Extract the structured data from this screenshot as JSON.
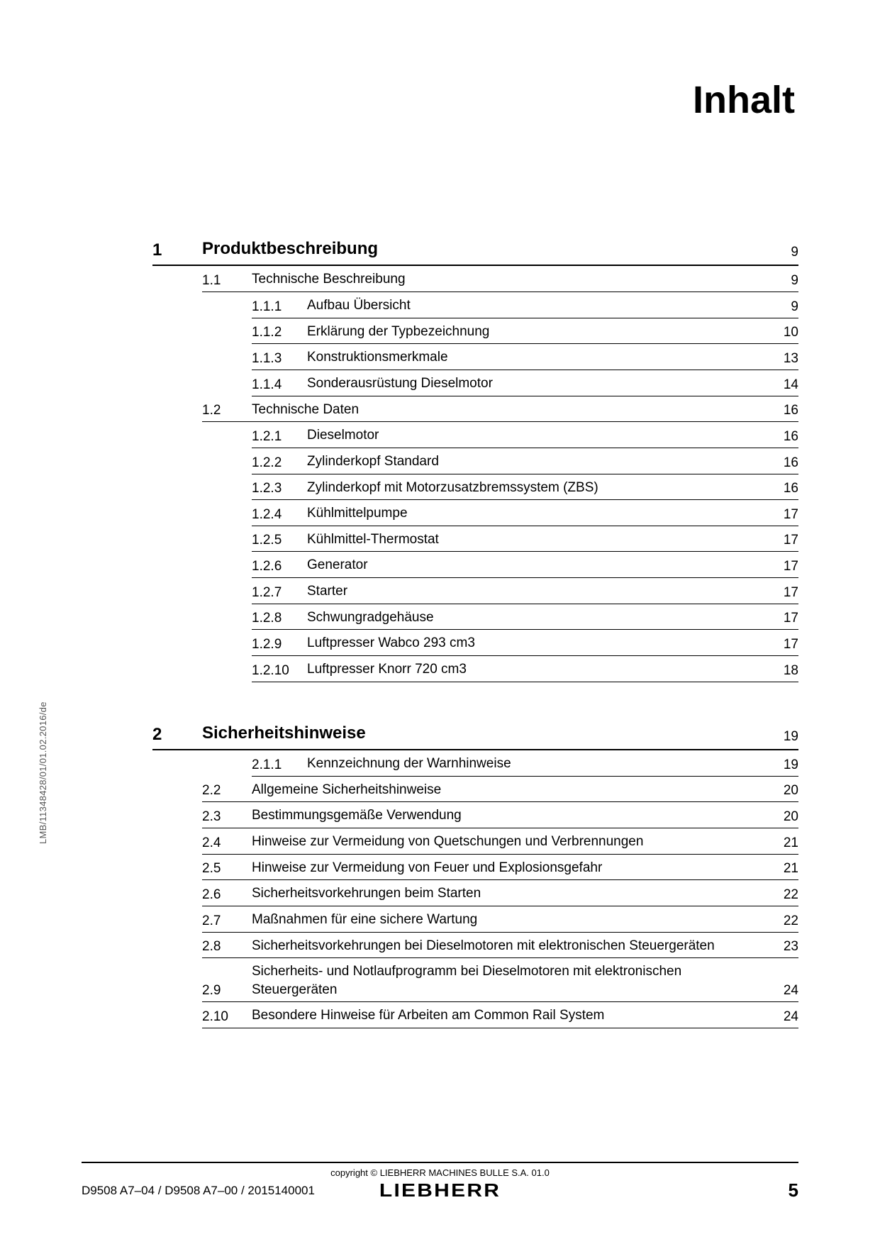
{
  "title": "Inhalt",
  "sideText": "LMB/11348428/01/01.02.2016/de",
  "footer": {
    "copyright": "copyright © LIEBHERR MACHINES BULLE S.A. 01.0",
    "docRef": "D9508 A7–04 / D9508 A7–00 / 2015140001",
    "brand": "LIEBHERR",
    "pageNumber": "5"
  },
  "sections": [
    {
      "num": "1",
      "title": "Produktbeschreibung",
      "page": "9",
      "items": [
        {
          "level": 2,
          "num": "1.1",
          "title": "Technische Beschreibung",
          "page": "9"
        },
        {
          "level": 3,
          "num": "1.1.1",
          "title": "Aufbau Übersicht",
          "page": "9"
        },
        {
          "level": 3,
          "num": "1.1.2",
          "title": "Erklärung der Typbezeichnung",
          "page": "10"
        },
        {
          "level": 3,
          "num": "1.1.3",
          "title": "Konstruktionsmerkmale",
          "page": "13"
        },
        {
          "level": 3,
          "num": "1.1.4",
          "title": "Sonderausrüstung Dieselmotor",
          "page": "14"
        },
        {
          "level": 2,
          "num": "1.2",
          "title": "Technische Daten",
          "page": "16"
        },
        {
          "level": 3,
          "num": "1.2.1",
          "title": "Dieselmotor",
          "page": "16"
        },
        {
          "level": 3,
          "num": "1.2.2",
          "title": "Zylinderkopf Standard",
          "page": "16"
        },
        {
          "level": 3,
          "num": "1.2.3",
          "title": "Zylinderkopf mit Motorzusatzbremssystem (ZBS)",
          "page": "16"
        },
        {
          "level": 3,
          "num": "1.2.4",
          "title": "Kühlmittelpumpe",
          "page": "17"
        },
        {
          "level": 3,
          "num": "1.2.5",
          "title": "Kühlmittel-Thermostat",
          "page": "17"
        },
        {
          "level": 3,
          "num": "1.2.6",
          "title": "Generator",
          "page": "17"
        },
        {
          "level": 3,
          "num": "1.2.7",
          "title": "Starter",
          "page": "17"
        },
        {
          "level": 3,
          "num": "1.2.8",
          "title": "Schwungradgehäuse",
          "page": "17"
        },
        {
          "level": 3,
          "num": "1.2.9",
          "title": "Luftpresser Wabco 293 cm3",
          "page": "17"
        },
        {
          "level": 3,
          "num": "1.2.10",
          "title": "Luftpresser Knorr 720 cm3",
          "page": "18"
        }
      ]
    },
    {
      "num": "2",
      "title": "Sicherheitshinweise",
      "page": "19",
      "items": [
        {
          "level": 3,
          "num": "2.1.1",
          "title": "Kennzeichnung der Warnhinweise",
          "page": "19"
        },
        {
          "level": 2,
          "num": "2.2",
          "title": "Allgemeine Sicherheitshinweise",
          "page": "20"
        },
        {
          "level": 2,
          "num": "2.3",
          "title": "Bestimmungsgemäße Verwendung",
          "page": "20"
        },
        {
          "level": 2,
          "num": "2.4",
          "title": "Hinweise zur Vermeidung von Quetschungen und Verbrennungen",
          "page": "21"
        },
        {
          "level": 2,
          "num": "2.5",
          "title": "Hinweise zur Vermeidung von Feuer und Explosionsgefahr",
          "page": "21"
        },
        {
          "level": 2,
          "num": "2.6",
          "title": "Sicherheitsvorkehrungen beim Starten",
          "page": "22"
        },
        {
          "level": 2,
          "num": "2.7",
          "title": "Maßnahmen für eine sichere Wartung",
          "page": "22"
        },
        {
          "level": 2,
          "num": "2.8",
          "title": "Sicherheitsvorkehrungen bei Dieselmotoren mit elektronischen Steuergeräten",
          "page": "23"
        },
        {
          "level": 2,
          "num": "2.9",
          "title": "Sicherheits- und Notlaufprogramm bei Dieselmotoren mit elektronischen Steuergeräten",
          "page": "24"
        },
        {
          "level": 2,
          "num": "2.10",
          "title": "Besondere Hinweise für Arbeiten am Common Rail System",
          "page": "24"
        }
      ]
    }
  ]
}
